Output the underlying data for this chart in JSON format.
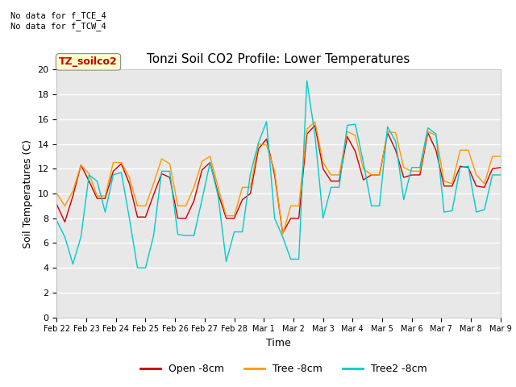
{
  "title": "Tonzi Soil CO2 Profile: Lower Temperatures",
  "xlabel": "Time",
  "ylabel": "Soil Temperatures (C)",
  "ylim": [
    0,
    20
  ],
  "yticks": [
    0,
    2,
    4,
    6,
    8,
    10,
    12,
    14,
    16,
    18,
    20
  ],
  "annotation_text": "No data for f_TCE_4\nNo data for f_TCW_4",
  "box_label": "TZ_soilco2",
  "legend_entries": [
    "Open -8cm",
    "Tree -8cm",
    "Tree2 -8cm"
  ],
  "legend_colors": [
    "#cc0000",
    "#ff9900",
    "#00cccc"
  ],
  "open_color": "#cc0000",
  "tree_color": "#ff9900",
  "tree2_color": "#00cccc",
  "bg_color": "#e8e8e8",
  "grid_color": "#ffffff",
  "fig_color": "#ffffff",
  "xtick_labels": [
    "Feb 22",
    "Feb 23",
    "Feb 24",
    "Feb 25",
    "Feb 26",
    "Feb 27",
    "Feb 28",
    "Mar 1",
    "Mar 2",
    "Mar 3",
    "Mar 4",
    "Mar 5",
    "Mar 6",
    "Mar 7",
    "Mar 8",
    "Mar 9"
  ],
  "open_8cm": [
    9.1,
    7.7,
    9.8,
    12.3,
    11.0,
    9.6,
    9.6,
    11.8,
    12.4,
    10.8,
    8.1,
    8.1,
    9.9,
    11.6,
    11.3,
    8.0,
    8.0,
    9.4,
    11.9,
    12.5,
    10.0,
    8.0,
    8.0,
    9.5,
    10.0,
    13.6,
    14.4,
    11.5,
    6.8,
    8.0,
    8.0,
    14.8,
    15.5,
    12.0,
    11.0,
    11.0,
    14.6,
    13.4,
    11.1,
    11.5,
    11.5,
    14.9,
    13.5,
    11.3,
    11.5,
    11.5,
    14.9,
    13.5,
    10.6,
    10.6,
    12.2,
    12.1,
    10.6,
    10.5,
    12.0,
    12.1
  ],
  "tree_8cm": [
    10.0,
    9.0,
    10.2,
    12.3,
    11.6,
    9.8,
    9.8,
    12.5,
    12.5,
    11.3,
    9.0,
    9.0,
    10.8,
    12.8,
    12.4,
    9.0,
    9.0,
    10.5,
    12.6,
    13.0,
    10.5,
    8.2,
    8.2,
    10.5,
    10.5,
    14.0,
    13.9,
    11.8,
    6.7,
    9.0,
    9.0,
    15.2,
    15.8,
    12.5,
    11.5,
    11.5,
    15.0,
    14.7,
    12.0,
    11.5,
    11.5,
    15.0,
    14.9,
    12.1,
    11.8,
    11.8,
    15.0,
    14.7,
    11.0,
    10.8,
    13.5,
    13.5,
    11.5,
    10.8,
    13.0,
    13.0
  ],
  "tree2_8cm": [
    7.8,
    6.5,
    4.3,
    6.5,
    11.5,
    11.0,
    8.5,
    11.5,
    11.7,
    8.0,
    4.0,
    4.0,
    6.6,
    11.8,
    11.8,
    6.7,
    6.6,
    6.6,
    9.5,
    12.5,
    9.8,
    4.5,
    6.9,
    6.9,
    11.6,
    14.1,
    15.8,
    8.0,
    6.5,
    4.7,
    4.7,
    19.1,
    14.7,
    8.0,
    10.5,
    10.5,
    15.5,
    15.6,
    12.5,
    9.0,
    9.0,
    15.4,
    14.2,
    9.5,
    12.1,
    12.1,
    15.3,
    14.8,
    8.5,
    8.6,
    12.1,
    12.2,
    8.5,
    8.7,
    11.5,
    11.5
  ]
}
